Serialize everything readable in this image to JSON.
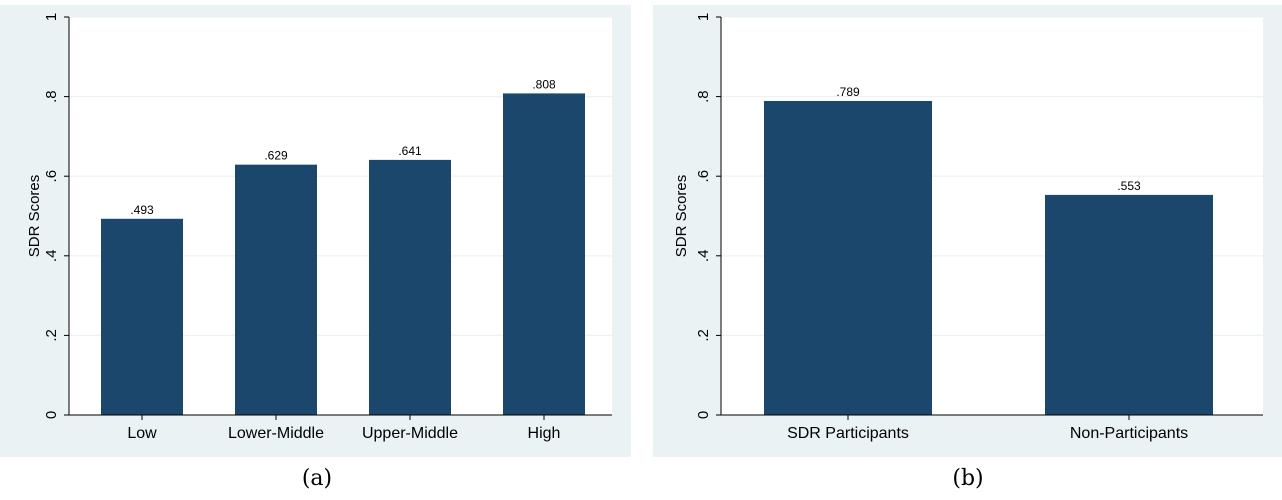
{
  "chart_data": [
    {
      "type": "bar",
      "caption": "(a)",
      "ylabel": "SDR Scores",
      "ylim": [
        0,
        1
      ],
      "yticks": [
        {
          "value": 0,
          "label": "0"
        },
        {
          "value": 0.2,
          "label": ".2"
        },
        {
          "value": 0.4,
          "label": ".4"
        },
        {
          "value": 0.6,
          "label": ".6"
        },
        {
          "value": 0.8,
          "label": ".8"
        },
        {
          "value": 1,
          "label": "1"
        }
      ],
      "categories": [
        "Low",
        "Lower-Middle",
        "Upper-Middle",
        "High"
      ],
      "values": [
        0.493,
        0.629,
        0.641,
        0.808
      ],
      "value_labels": [
        ".493",
        ".629",
        ".641",
        ".808"
      ],
      "grid": true,
      "bar_color": "#1c476d",
      "plot_background": "#ffffff",
      "outer_background": "#eaf2f3",
      "grid_color": "#eaf2f3"
    },
    {
      "type": "bar",
      "caption": "(b)",
      "ylabel": "SDR Scores",
      "ylim": [
        0,
        1
      ],
      "yticks": [
        {
          "value": 0,
          "label": "0"
        },
        {
          "value": 0.2,
          "label": ".2"
        },
        {
          "value": 0.4,
          "label": ".4"
        },
        {
          "value": 0.6,
          "label": ".6"
        },
        {
          "value": 0.8,
          "label": ".8"
        },
        {
          "value": 1,
          "label": "1"
        }
      ],
      "categories": [
        "SDR Participants",
        "Non-Participants"
      ],
      "values": [
        0.789,
        0.553
      ],
      "value_labels": [
        ".789",
        ".553"
      ],
      "grid": true,
      "bar_color": "#1c476d",
      "plot_background": "#ffffff",
      "outer_background": "#eaf2f3",
      "grid_color": "#eaf2f3"
    }
  ]
}
